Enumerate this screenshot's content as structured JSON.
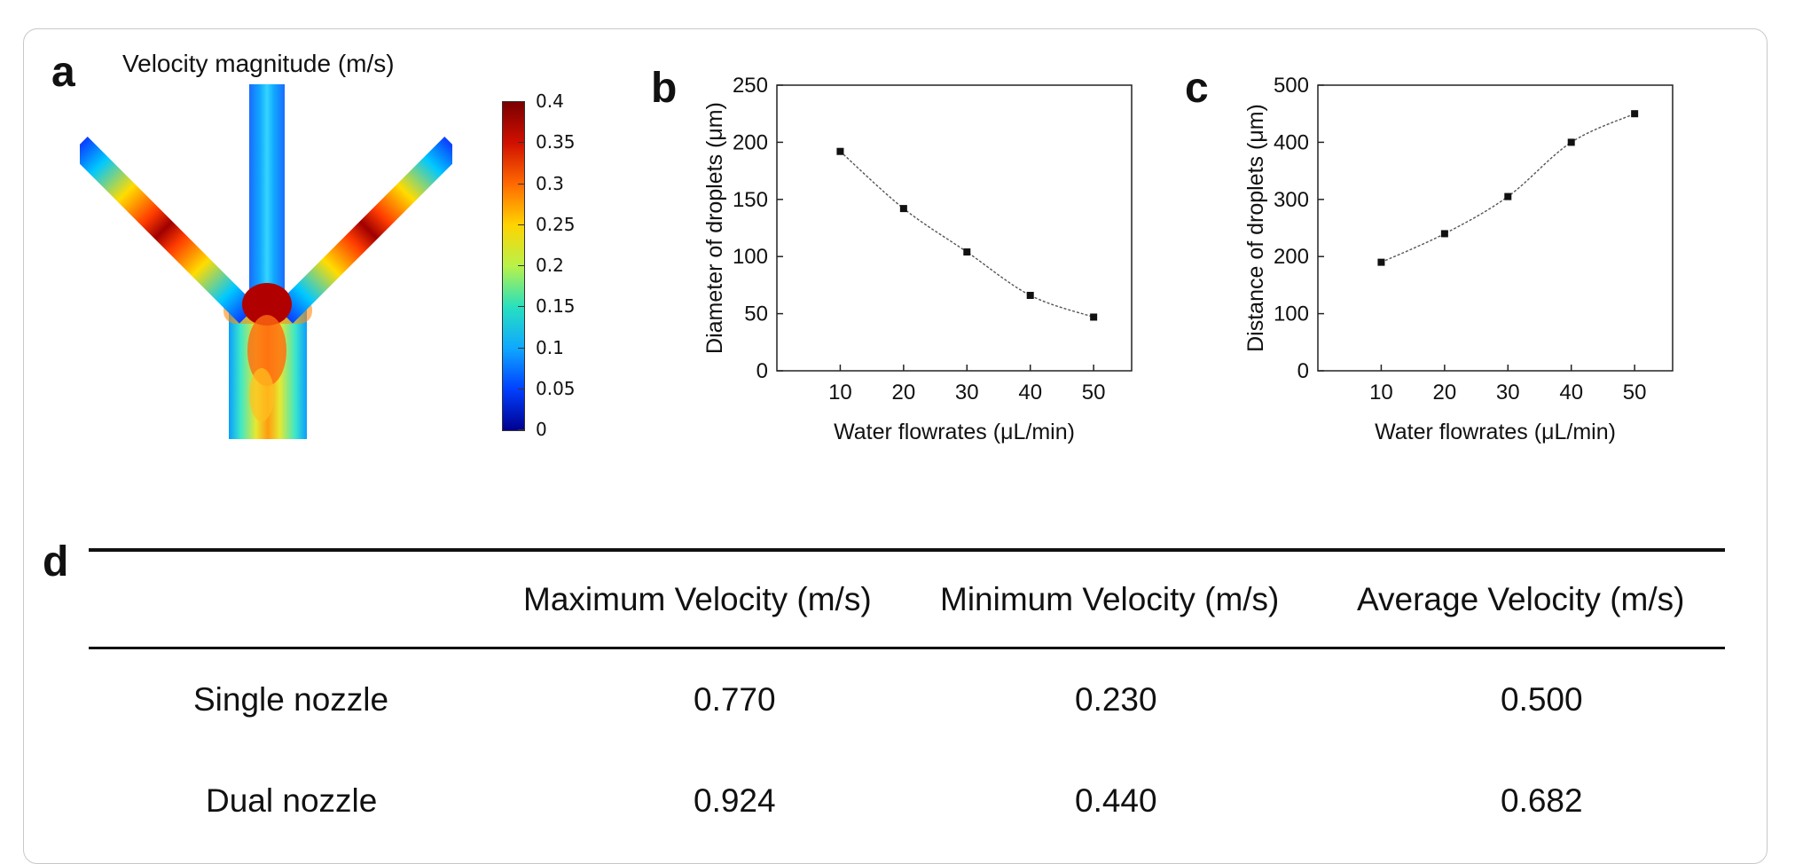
{
  "panels": {
    "a": "a",
    "b": "b",
    "c": "c",
    "d": "d"
  },
  "velocity_title": "Velocity magnitude (m/s)",
  "colorbar": {
    "ticks": [
      "0.4",
      "0.35",
      "0.3",
      "0.25",
      "0.2",
      "0.15",
      "0.1",
      "0.05",
      "0"
    ],
    "colors": [
      "#7a0000",
      "#d11000",
      "#ff6a00",
      "#ffd400",
      "#b8f24a",
      "#27e0c0",
      "#0fa8ff",
      "#0040ff",
      "#00008f"
    ]
  },
  "chart_data": [
    {
      "type": "line",
      "panel": "b",
      "xlabel": "Water flowrates (μL/min)",
      "ylabel": "Diameter of droplets (μm)",
      "x": [
        10,
        20,
        30,
        40,
        50
      ],
      "y": [
        192,
        142,
        104,
        66,
        47
      ],
      "xlim": [
        0,
        56
      ],
      "ylim": [
        0,
        250
      ],
      "xticks": [
        "10",
        "20",
        "30",
        "40",
        "50"
      ],
      "yticks": [
        "0",
        "50",
        "100",
        "150",
        "200",
        "250"
      ]
    },
    {
      "type": "line",
      "panel": "c",
      "xlabel": "Water flowrates (μL/min)",
      "ylabel": "Distance of droplets (μm)",
      "x": [
        10,
        20,
        30,
        40,
        50
      ],
      "y": [
        190,
        240,
        305,
        400,
        450
      ],
      "xlim": [
        0,
        56
      ],
      "ylim": [
        0,
        500
      ],
      "xticks": [
        "10",
        "20",
        "30",
        "40",
        "50"
      ],
      "yticks": [
        "0",
        "100",
        "200",
        "300",
        "400",
        "500"
      ]
    },
    {
      "type": "table",
      "panel": "d",
      "columns": [
        "",
        "Maximum Velocity (m/s)",
        "Minimum Velocity (m/s)",
        "Average Velocity (m/s)"
      ],
      "rows": [
        [
          "Single nozzle",
          "0.770",
          "0.230",
          "0.500"
        ],
        [
          "Dual nozzle",
          "0.924",
          "0.440",
          "0.682"
        ]
      ]
    }
  ]
}
